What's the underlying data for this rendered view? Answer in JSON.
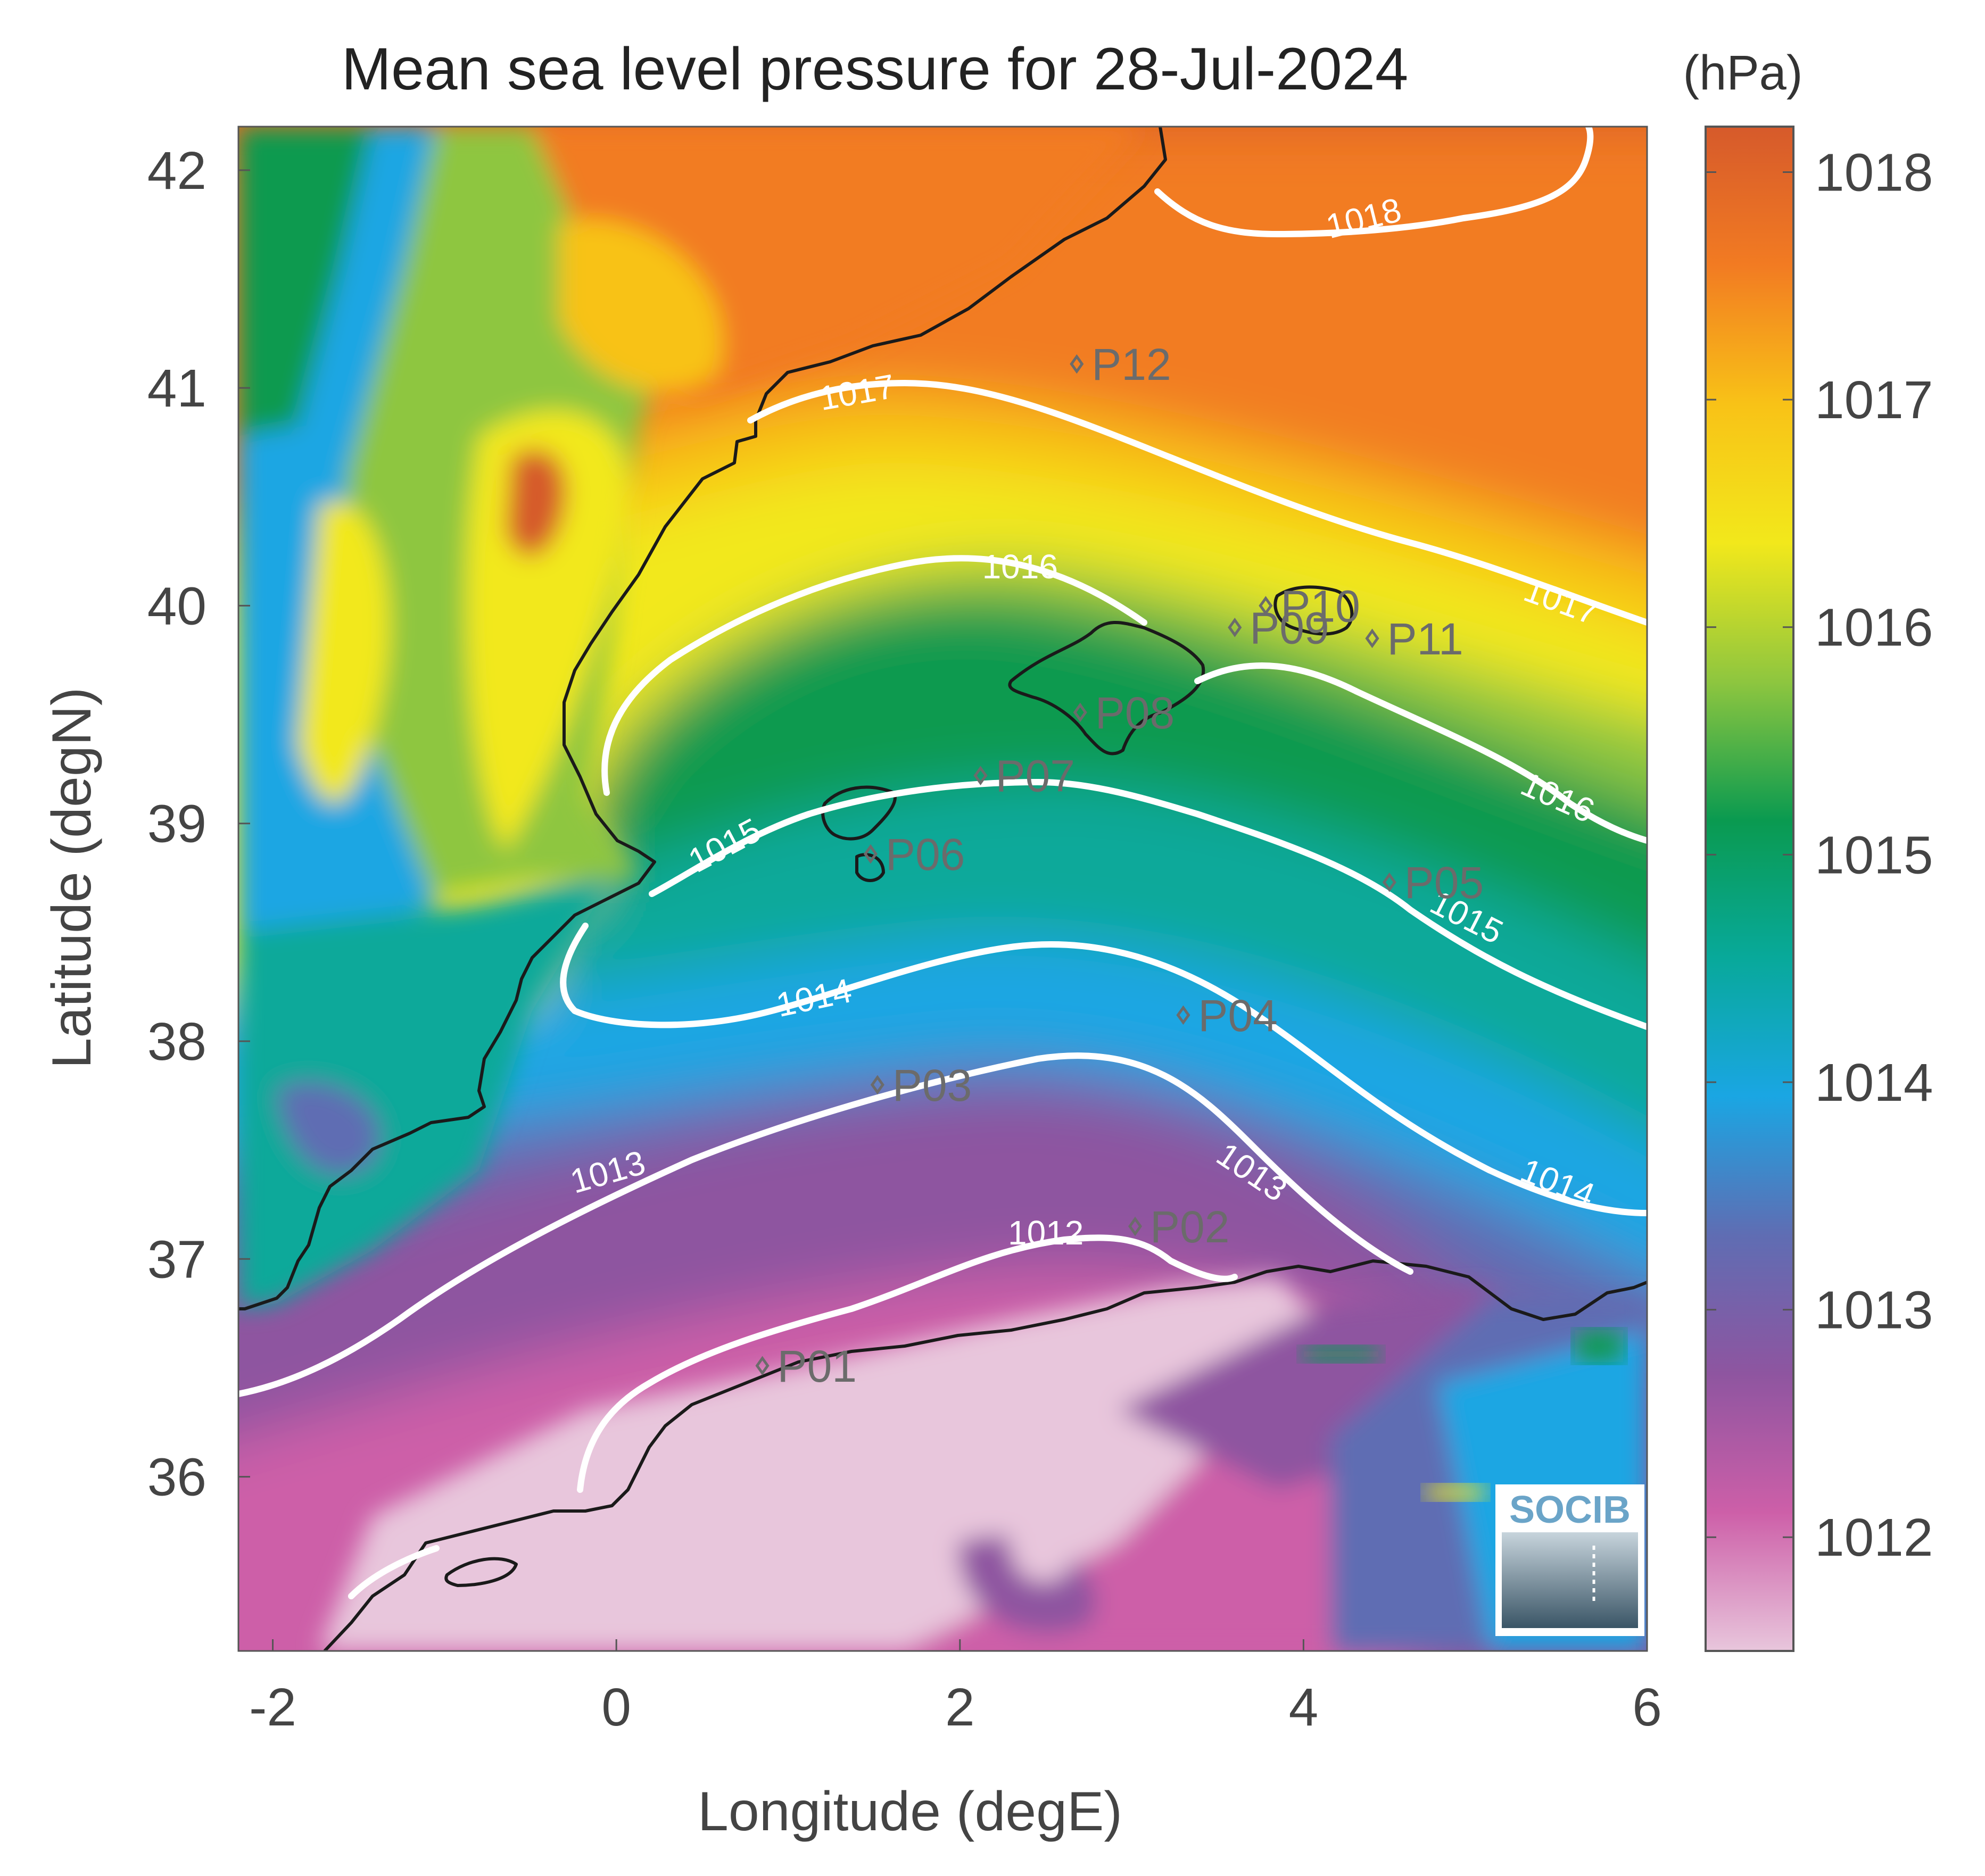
{
  "title": "Mean sea level pressure for 28-Jul-2024",
  "colorbar": {
    "unit": "(hPa)",
    "ticks": [
      "1012",
      "1013",
      "1014",
      "1015",
      "1016",
      "1017",
      "1018"
    ],
    "range": [
      1011.5,
      1018.2
    ],
    "colormap": [
      "#e8c6dc",
      "#cd5fa8",
      "#8e55a0",
      "#5f6db3",
      "#1aa6e3",
      "#08a99a",
      "#0a9a50",
      "#8ec63f",
      "#f2e81b",
      "#f8c217",
      "#f27b22",
      "#d65a2b"
    ]
  },
  "axes": {
    "xlabel": "Longitude (degE)",
    "ylabel": "Latitude (degN)",
    "xticks": [
      "-2",
      "0",
      "2",
      "4",
      "6"
    ],
    "yticks": [
      "36",
      "37",
      "38",
      "39",
      "40",
      "41",
      "42"
    ],
    "xlim": [
      -2.2,
      6.0
    ],
    "ylim": [
      35.2,
      42.2
    ]
  },
  "logo": {
    "text": "SOCIB"
  },
  "contour_labels": [
    {
      "text": "1018",
      "lon": 4.35,
      "lat": 41.78,
      "rot": -14
    },
    {
      "text": "1017",
      "lon": 1.4,
      "lat": 40.98,
      "rot": -10
    },
    {
      "text": "1017",
      "lon": 5.5,
      "lat": 40.02,
      "rot": 20
    },
    {
      "text": "1016",
      "lon": 2.35,
      "lat": 40.18,
      "rot": 0
    },
    {
      "text": "1016",
      "lon": 5.48,
      "lat": 39.12,
      "rot": 24
    },
    {
      "text": "1015",
      "lon": 0.63,
      "lat": 38.9,
      "rot": -28
    },
    {
      "text": "1015",
      "lon": 4.95,
      "lat": 38.57,
      "rot": 27
    },
    {
      "text": "1014",
      "lon": 1.15,
      "lat": 38.2,
      "rot": -12
    },
    {
      "text": "1014",
      "lon": 5.48,
      "lat": 37.35,
      "rot": 22
    },
    {
      "text": "1013",
      "lon": -0.05,
      "lat": 37.4,
      "rot": -16
    },
    {
      "text": "1013",
      "lon": 3.7,
      "lat": 37.4,
      "rot": 34
    },
    {
      "text": "1012",
      "lon": 2.5,
      "lat": 37.12,
      "rot": 0
    }
  ],
  "stations": [
    {
      "name": "P01",
      "lon": 0.85,
      "lat": 36.51
    },
    {
      "name": "P02",
      "lon": 3.02,
      "lat": 37.15
    },
    {
      "name": "P03",
      "lon": 1.52,
      "lat": 37.8
    },
    {
      "name": "P04",
      "lon": 3.3,
      "lat": 38.12
    },
    {
      "name": "P05",
      "lon": 4.5,
      "lat": 38.73
    },
    {
      "name": "P06",
      "lon": 1.48,
      "lat": 38.86
    },
    {
      "name": "P07",
      "lon": 2.12,
      "lat": 39.22
    },
    {
      "name": "P08",
      "lon": 2.7,
      "lat": 39.51
    },
    {
      "name": "P09",
      "lon": 3.6,
      "lat": 39.9
    },
    {
      "name": "P10",
      "lon": 3.78,
      "lat": 40.0
    },
    {
      "name": "P11",
      "lon": 4.4,
      "lat": 39.85
    },
    {
      "name": "P12",
      "lon": 2.68,
      "lat": 41.11
    }
  ]
}
